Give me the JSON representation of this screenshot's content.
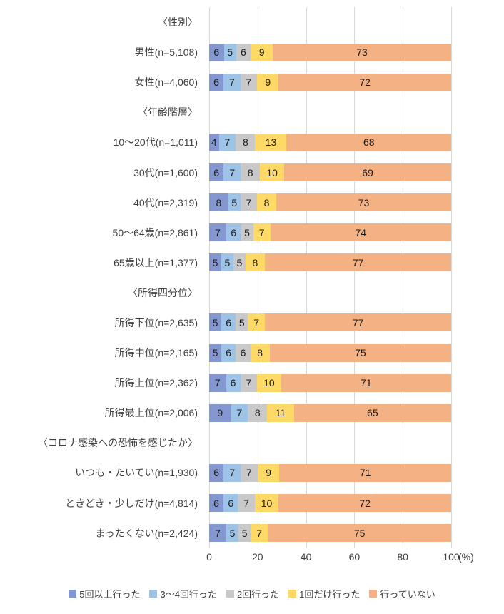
{
  "chart_data": {
    "type": "bar",
    "orientation": "horizontal",
    "stacked": true,
    "title": "",
    "xlabel": "",
    "ylabel": "",
    "x_axis": {
      "ticks": [
        0,
        20,
        40,
        60,
        80,
        100
      ],
      "max": 100,
      "unit": "(%)"
    },
    "grid": "vertical",
    "legend_position": "bottom",
    "series_colors": [
      "#8497D0",
      "#9DC3E6",
      "#C9C9C9",
      "#FFD966",
      "#F4B183"
    ],
    "gridline_color": "#D9D9D9",
    "legend": [
      {
        "label": "5回以上行った",
        "color": "#8497D0"
      },
      {
        "label": "3〜4回行った",
        "color": "#9DC3E6"
      },
      {
        "label": "2回行った",
        "color": "#C9C9C9"
      },
      {
        "label": "1回だけ行った",
        "color": "#FFD966"
      },
      {
        "label": "行っていない",
        "color": "#F4B183"
      }
    ],
    "rows": [
      {
        "type": "header",
        "label": "〈性別〉"
      },
      {
        "type": "data",
        "label": "男性(n=5,108)",
        "values": [
          6,
          5,
          6,
          9,
          73
        ]
      },
      {
        "type": "data",
        "label": "女性(n=4,060)",
        "values": [
          6,
          7,
          7,
          9,
          72
        ]
      },
      {
        "type": "header",
        "label": "〈年齢階層〉"
      },
      {
        "type": "data",
        "label": "10〜20代(n=1,011)",
        "values": [
          4,
          7,
          8,
          13,
          68
        ]
      },
      {
        "type": "data",
        "label": "30代(n=1,600)",
        "values": [
          6,
          7,
          8,
          10,
          69
        ]
      },
      {
        "type": "data",
        "label": "40代(n=2,319)",
        "values": [
          8,
          5,
          7,
          8,
          73
        ]
      },
      {
        "type": "data",
        "label": "50〜64歳(n=2,861)",
        "values": [
          7,
          6,
          5,
          7,
          74
        ]
      },
      {
        "type": "data",
        "label": "65歳以上(n=1,377)",
        "values": [
          5,
          5,
          5,
          8,
          77
        ]
      },
      {
        "type": "header",
        "label": "〈所得四分位〉"
      },
      {
        "type": "data",
        "label": "所得下位(n=2,635)",
        "values": [
          5,
          6,
          5,
          7,
          77
        ]
      },
      {
        "type": "data",
        "label": "所得中位(n=2,165)",
        "values": [
          5,
          6,
          6,
          8,
          75
        ]
      },
      {
        "type": "data",
        "label": "所得上位(n=2,362)",
        "values": [
          7,
          6,
          7,
          10,
          71
        ]
      },
      {
        "type": "data",
        "label": "所得最上位(n=2,006)",
        "values": [
          9,
          7,
          8,
          11,
          65
        ]
      },
      {
        "type": "header",
        "label": "〈コロナ感染への恐怖を感じたか〉"
      },
      {
        "type": "data",
        "label": "いつも・たいてい(n=1,930)",
        "values": [
          6,
          7,
          7,
          9,
          71
        ]
      },
      {
        "type": "data",
        "label": "ときどき・少しだけ(n=4,814)",
        "values": [
          6,
          6,
          7,
          10,
          72
        ]
      },
      {
        "type": "data",
        "label": "まったくない(n=2,424)",
        "values": [
          7,
          5,
          5,
          7,
          75
        ]
      }
    ]
  }
}
